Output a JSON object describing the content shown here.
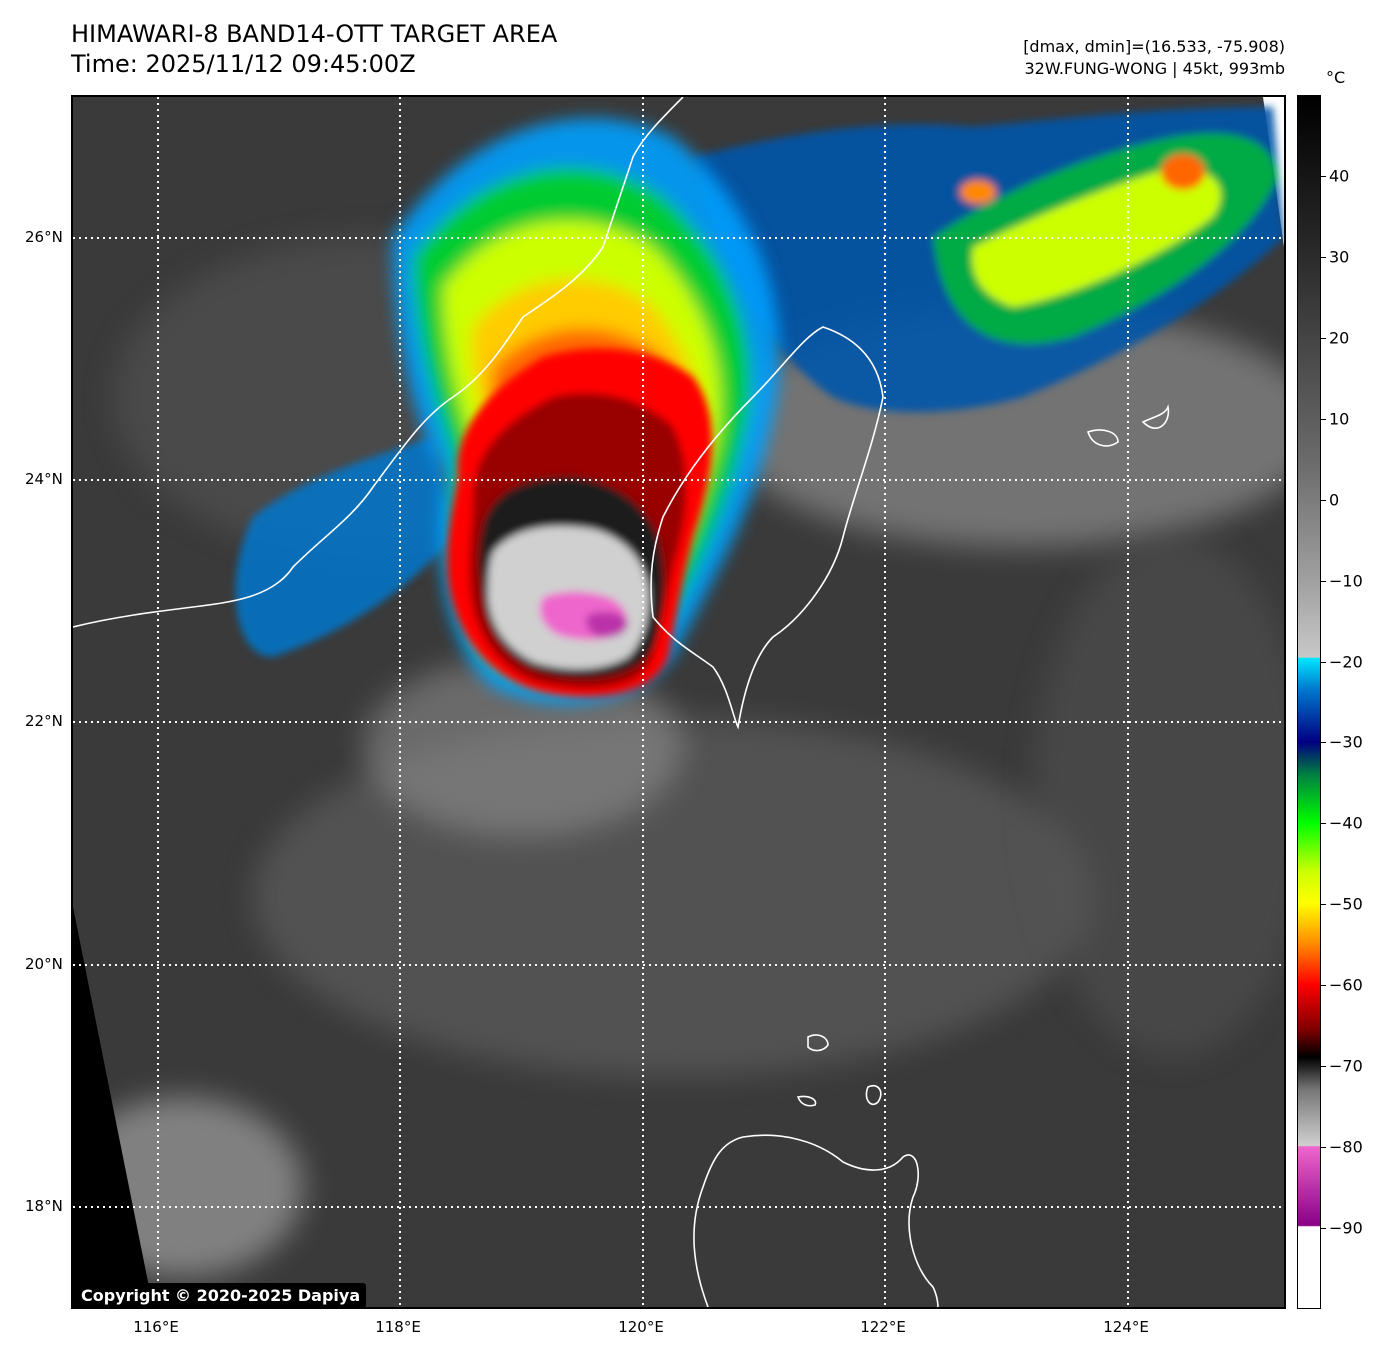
{
  "header": {
    "title": "HIMAWARI-8 BAND14-OTT TARGET AREA",
    "time": "Time: 2025/11/12 09:45:00Z",
    "dmax_dmin": "[dmax, dmin]=(16.533, -75.908)",
    "storm_info": "32W.FUNG-WONG | 45kt, 993mb"
  },
  "map": {
    "lat_labels": [
      "26°N",
      "24°N",
      "22°N",
      "20°N",
      "18°N"
    ],
    "lon_labels": [
      "116°E",
      "118°E",
      "120°E",
      "122°E",
      "124°E"
    ]
  },
  "colorbar": {
    "unit": "°C",
    "ticks": [
      "40",
      "30",
      "20",
      "10",
      "0",
      "−10",
      "−20",
      "−30",
      "−40",
      "−50",
      "−60",
      "−70",
      "−80",
      "−90"
    ],
    "tick_values": [
      40,
      30,
      20,
      10,
      0,
      -10,
      -20,
      -30,
      -40,
      -50,
      -60,
      -70,
      -80,
      -90
    ],
    "range": [
      -100,
      50
    ]
  },
  "copyright": "Copyright © 2020-2025 Dapiya",
  "colors": {
    "cold_top": "#ee66cc",
    "deep_red": "#cc0000",
    "coastline": "#ffffff",
    "grid": "#ffffff"
  }
}
